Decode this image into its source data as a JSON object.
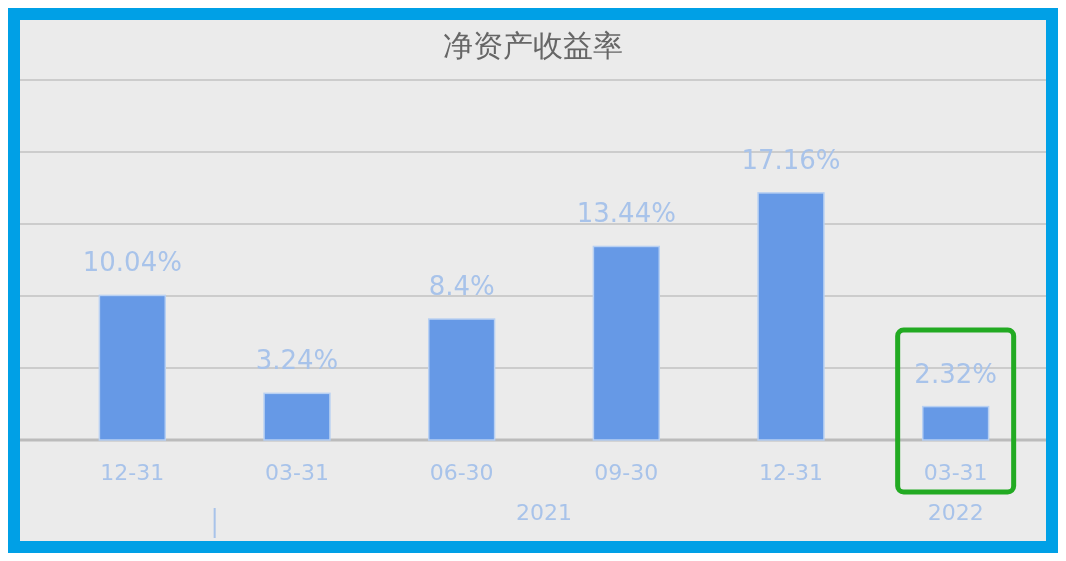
{
  "chart_data": {
    "type": "bar",
    "title": "净资产收益率",
    "categories": [
      "12-31",
      "03-31",
      "06-30",
      "09-30",
      "12-31",
      "03-31"
    ],
    "values": [
      10.04,
      3.24,
      8.4,
      13.44,
      17.16,
      2.32
    ],
    "value_labels": [
      "10.04%",
      "3.24%",
      "8.4%",
      "13.44%",
      "17.16%",
      "2.32%"
    ],
    "color": "#6699e6",
    "ylim": [
      0,
      25
    ],
    "yticks": [
      {
        "value": 0,
        "label": null
      },
      {
        "value": 5,
        "label": null
      },
      {
        "value": 10,
        "label": null
      },
      {
        "value": 15,
        "label": null
      },
      {
        "value": 20,
        "label": null
      },
      {
        "value": 25,
        "label": null
      }
    ],
    "grid": "y",
    "tick_labels": "x",
    "annotations": [
      "2021",
      "2022"
    ]
  }
}
